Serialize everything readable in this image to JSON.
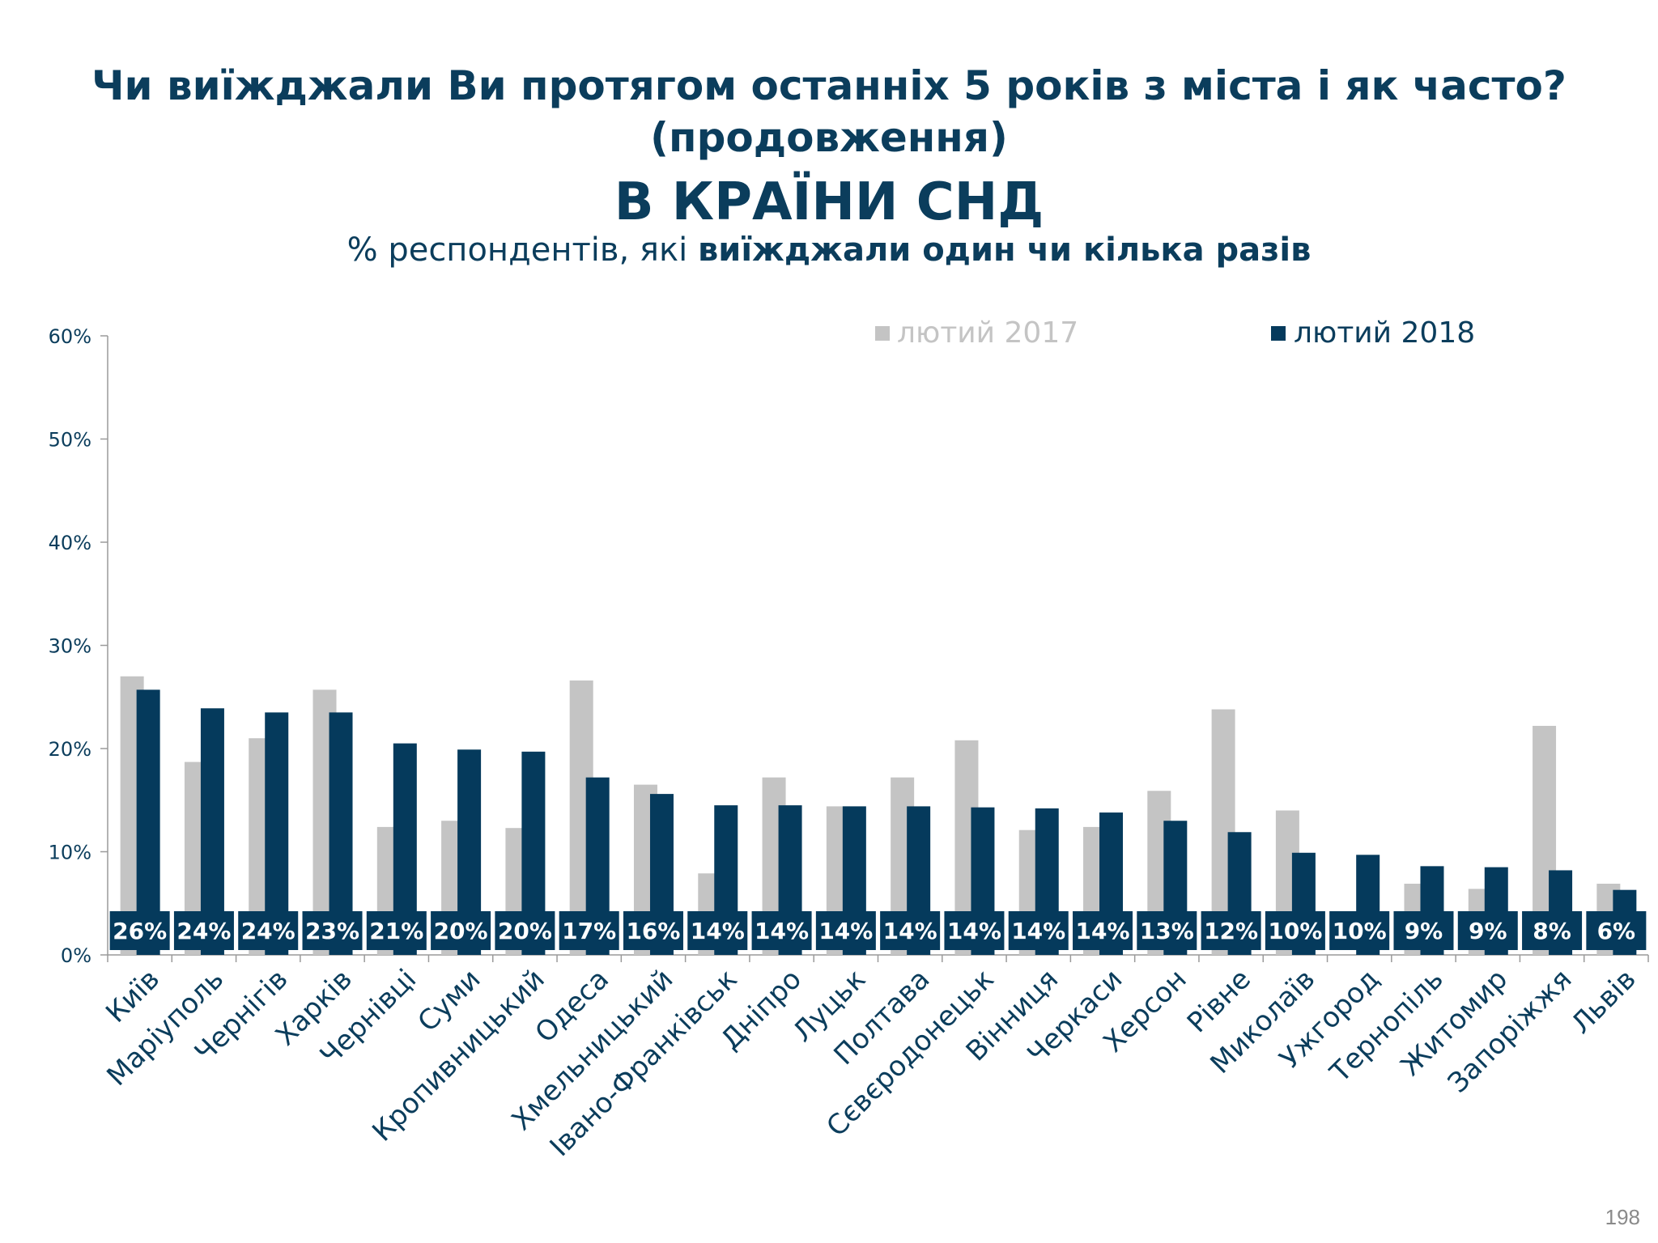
{
  "slide": {
    "title_line1": "Чи виїжджали Ви протягом останніх 5 років з міста і як часто?",
    "title_line2": "(продовження)",
    "heading": "В КРАЇНИ СНД",
    "subtitle_regular": "% респондентів, які ",
    "subtitle_bold": "виїжджали один чи кілька разів",
    "page_number": "198"
  },
  "chart_data": {
    "type": "bar",
    "y_ticks": [
      "0%",
      "10%",
      "20%",
      "30%",
      "40%",
      "50%",
      "60%"
    ],
    "ylim": [
      0,
      60
    ],
    "legend_position": "top-right",
    "categories": [
      "Київ",
      "Маріуполь",
      "Чернігів",
      "Харків",
      "Чернівці",
      "Суми",
      "Кропивницький",
      "Одеса",
      "Хмельницький",
      "Івано-Франківськ",
      "Дніпро",
      "Луцьк",
      "Полтава",
      "Сєвєродонецьк",
      "Вінниця",
      "Черкаси",
      "Херсон",
      "Рівне",
      "Миколаїв",
      "Ужгород",
      "Тернопіль",
      "Житомир",
      "Запоріжжя",
      "Львів"
    ],
    "series": [
      {
        "name": "лютий 2017",
        "color": "#c4c4c4",
        "values": [
          27,
          18.7,
          21,
          25.7,
          12.4,
          13,
          12.3,
          26.6,
          16.5,
          7.9,
          17.2,
          14.4,
          17.2,
          20.8,
          12.1,
          12.4,
          15.9,
          23.8,
          14,
          null,
          6.9,
          6.4,
          22.2,
          6.9
        ]
      },
      {
        "name": "лютий 2018",
        "color": "#053a5c",
        "values": [
          25.7,
          23.9,
          23.5,
          23.5,
          20.5,
          19.9,
          19.7,
          17.2,
          15.6,
          14.5,
          14.5,
          14.4,
          14.4,
          14.3,
          14.2,
          13.8,
          13,
          11.9,
          9.9,
          9.7,
          8.6,
          8.5,
          8.2,
          6.3
        ]
      }
    ],
    "data_labels": [
      "26%",
      "24%",
      "24%",
      "23%",
      "21%",
      "20%",
      "20%",
      "17%",
      "16%",
      "14%",
      "14%",
      "14%",
      "14%",
      "14%",
      "14%",
      "14%",
      "13%",
      "12%",
      "10%",
      "10%",
      "9%",
      "9%",
      "8%",
      "6%"
    ]
  }
}
